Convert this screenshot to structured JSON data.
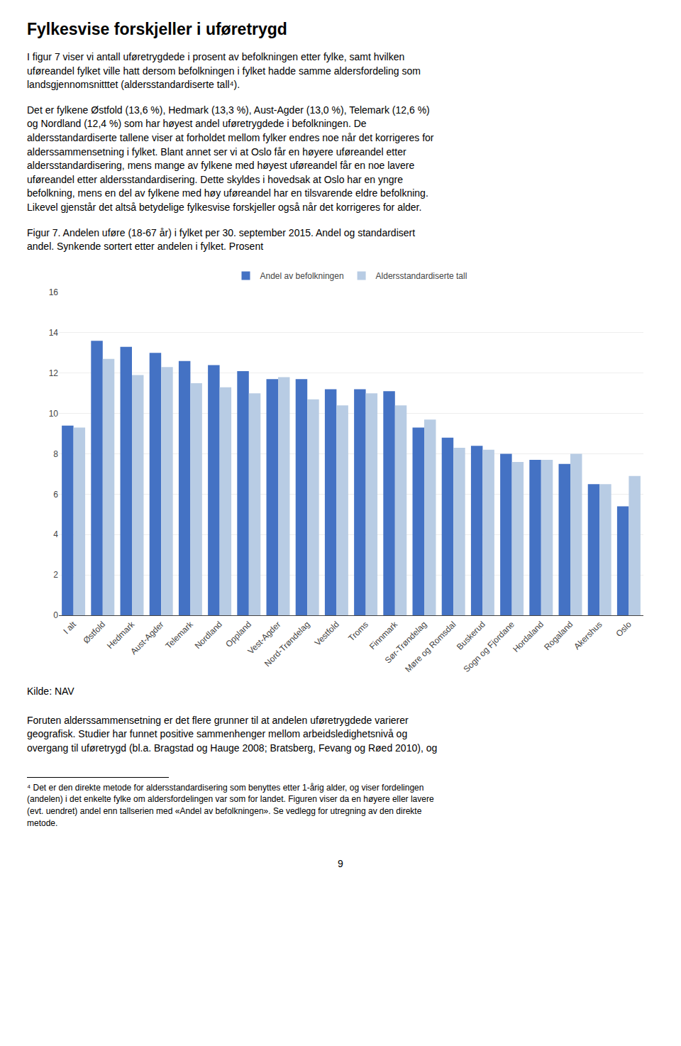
{
  "page": {
    "heading": "Fylkesvise forskjeller i uføretrygd",
    "paragraphs_before": [
      "I figur 7 viser vi antall uføretrygdede i prosent av befolkningen etter fylke, samt hvilken\nuføreandel fylket ville hatt dersom befolkningen i fylket hadde samme aldersfordeling som\nlandsgjennomsnitttet (aldersstandardiserte tall⁴).",
      "Det er fylkene Østfold (13,6 %), Hedmark (13,3 %), Aust-Agder (13,0 %), Telemark (12,6 %)\nog Nordland (12,4 %) som har høyest andel uføretrygdede i befolkningen. De\naldersstandardiserte tallene viser at forholdet mellom fylker endres noe når det korrigeres for\nalderssammensetning i fylket. Blant annet ser vi at Oslo får en høyere uføreandel etter\naldersstandardisering, mens mange av fylkene med høyest uføreandel får en noe lavere\nuføreandel etter aldersstandardisering. Dette skyldes i hovedsak at Oslo har en yngre\nbefolkning, mens en del av fylkene med høy uføreandel har en tilsvarende eldre befolkning.\nLikevel gjenstår det altså betydelige fylkesvise forskjeller også når det korrigeres for alder."
    ],
    "source": "Kilde: NAV",
    "paragraphs_after": [
      "Foruten alderssammensetning er det flere grunner til at andelen uføretrygdede varierer\ngeografisk. Studier har funnet positive sammenhenger mellom arbeidsledighetsnivå og\novergang til uføretrygd (bl.a. Bragstad og Hauge 2008; Bratsberg, Fevang og Røed 2010), og"
    ],
    "footnote": "⁴ Det er den direkte metode for aldersstandardisering som benyttes etter 1-årig alder, og viser fordelingen\n(andelen) i det enkelte fylke om aldersfordelingen var som for landet. Figuren viser da en høyere eller lavere\n(evt. uendret) andel enn tallserien med «Andel av befolkningen». Se vedlegg for utregning av den direkte\nmetode.",
    "page_number": "9"
  },
  "chart_data": {
    "type": "bar",
    "title": "Figur 7. Andelen uføre (18-67 år) i fylket per 30. september 2015. Andel og standardisert\nandel. Synkende sortert etter andelen i fylket. Prosent",
    "categories": [
      "I alt",
      "Østfold",
      "Hedmark",
      "Aust-Agder",
      "Telemark",
      "Nordland",
      "Oppland",
      "Vest-Agder",
      "Nord-Trøndelag",
      "Vestfold",
      "Troms",
      "Finnmark",
      "Sør-Trøndelag",
      "Møre og Romsdal",
      "Buskerud",
      "Sogn og Fjordane",
      "Hordaland",
      "Rogaland",
      "Akershus",
      "Oslo"
    ],
    "series": [
      {
        "name": "Andel av befolkningen",
        "color": "#4472C4",
        "values": [
          9.4,
          13.6,
          13.3,
          13.0,
          12.6,
          12.4,
          12.1,
          11.7,
          11.7,
          11.2,
          11.2,
          11.1,
          9.3,
          8.8,
          8.4,
          8.0,
          7.7,
          7.5,
          6.5,
          5.4
        ]
      },
      {
        "name": "Aldersstandardiserte tall",
        "color": "#B8CCE4",
        "values": [
          9.3,
          12.7,
          11.9,
          12.3,
          11.5,
          11.3,
          11.0,
          11.8,
          10.7,
          10.4,
          11.0,
          10.4,
          9.7,
          8.3,
          8.2,
          7.6,
          7.7,
          8.0,
          6.5,
          6.9
        ]
      }
    ],
    "ylim": [
      0,
      16
    ],
    "yticks": [
      0,
      2,
      4,
      6,
      8,
      10,
      12,
      14,
      16
    ],
    "grid": true,
    "legend": "top"
  }
}
